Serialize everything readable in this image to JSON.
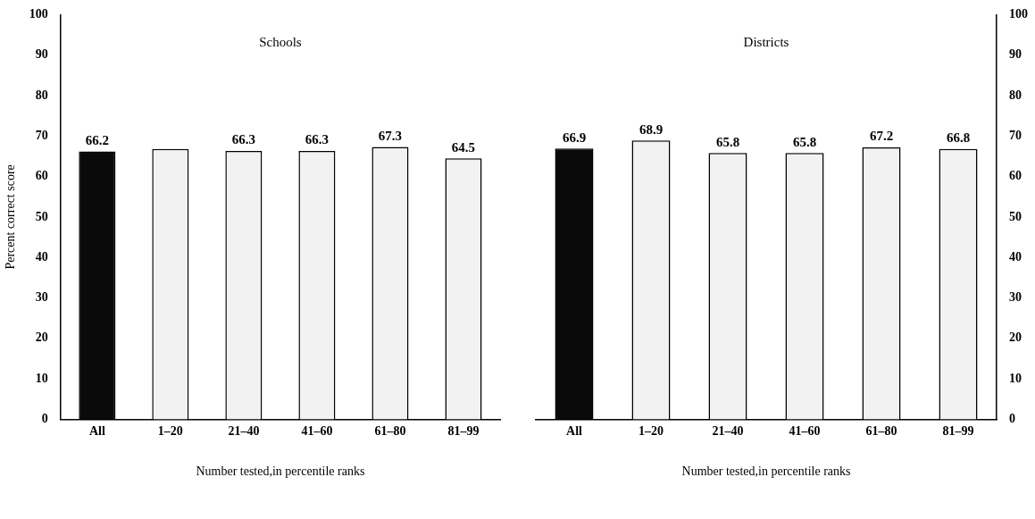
{
  "chart_data": [
    {
      "type": "bar",
      "title": "Schools",
      "xlabel": "Number tested,in percentile ranks",
      "ylabel": "Percent correct score",
      "categories": [
        "All",
        "1–20",
        "21–40",
        "41–60",
        "61–80",
        "81–99"
      ],
      "values": [
        66.2,
        66.8,
        66.3,
        66.3,
        67.3,
        64.5
      ],
      "value_labels": [
        "66.2",
        null,
        "66.3",
        "66.3",
        "67.3",
        "64.5"
      ],
      "colors": [
        "#0a0a0a",
        "#f2f2f2",
        "#f2f2f2",
        "#f2f2f2",
        "#f2f2f2",
        "#f2f2f2"
      ],
      "ylim": [
        0,
        100
      ],
      "yticks": [
        0,
        10,
        20,
        30,
        40,
        50,
        60,
        70,
        80,
        90,
        100
      ],
      "grid": false,
      "legend": false
    },
    {
      "type": "bar",
      "title": "Districts",
      "xlabel": "Number tested,in percentile ranks",
      "categories": [
        "All",
        "1–20",
        "21–40",
        "41–60",
        "61–80",
        "81–99"
      ],
      "values": [
        66.9,
        68.9,
        65.8,
        65.8,
        67.2,
        66.8
      ],
      "value_labels": [
        "66.9",
        "68.9",
        "65.8",
        "65.8",
        "67.2",
        "66.8"
      ],
      "colors": [
        "#0a0a0a",
        "#f2f2f2",
        "#f2f2f2",
        "#f2f2f2",
        "#f2f2f2",
        "#f2f2f2"
      ],
      "ylim": [
        0,
        100
      ],
      "yticks": [
        0,
        10,
        20,
        30,
        40,
        50,
        60,
        70,
        80,
        90,
        100
      ],
      "grid": false,
      "legend": false
    }
  ]
}
